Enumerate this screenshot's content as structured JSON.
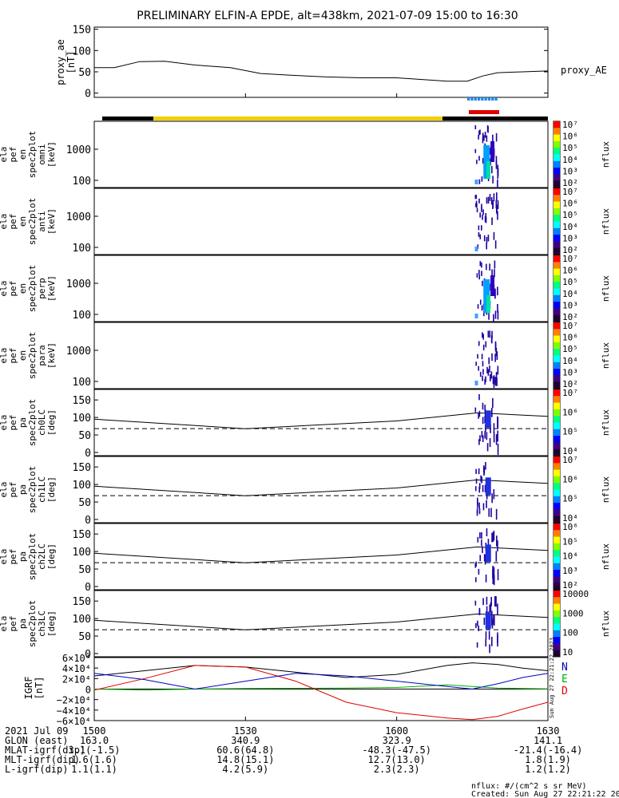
{
  "title": "PRELIMINARY ELFIN-A EPDE, alt=438km, 2021-07-09 15:00 to 16:30",
  "footer": {
    "units": "nflux: #/(cm^2 s sr MeV)",
    "created": "Created: Sun Aug 27 22:21:22 2023",
    "side_stamp": "Sun Aug 27 22:21:22 2023"
  },
  "colors": {
    "ae_bar_blue": "#1e88e5",
    "ae_bar_red": "#e00000",
    "status_black": "#000000",
    "status_yellow": "#f0d000",
    "spectrogram_low": "#2000a0",
    "spectrogram_mid": "#00a0ff",
    "spectrogram_high": "#00e0a0"
  },
  "time_axis": {
    "labels": [
      "1500",
      "1530",
      "1600",
      "1630"
    ],
    "range_minutes": [
      0,
      90
    ]
  },
  "ephemeris": {
    "rows": [
      {
        "label": "2021 Jul 09",
        "values": [
          "1500",
          "1530",
          "1600",
          "1630"
        ]
      },
      {
        "label": "GLON (east)",
        "values": [
          "163.0",
          "340.9",
          "323.9",
          "141.1"
        ]
      },
      {
        "label": "MLAT-igrf(dip)",
        "values": [
          "3.1(-1.5)",
          "60.6(64.8)",
          "-48.3(-47.5)",
          "-21.4(-16.4)"
        ]
      },
      {
        "label": "MLT-igrf(dip)",
        "values": [
          "1.6(1.6)",
          "14.8(15.1)",
          "12.7(13.0)",
          "1.8(1.9)"
        ]
      },
      {
        "label": "L-igrf(dip)",
        "values": [
          "1.1(1.1)",
          "4.2(5.9)",
          "2.3(2.3)",
          "1.2(1.2)"
        ]
      }
    ]
  },
  "colorbars": {
    "decade7": {
      "labels": [
        "10⁷",
        "10⁶",
        "10⁵",
        "10⁴",
        "10³",
        "10²"
      ],
      "ylabel": "nflux"
    },
    "lc7": {
      "labels": [
        "10⁷",
        "10⁶",
        "10⁵",
        "10⁴"
      ],
      "ylabel": "nflux"
    },
    "lc6": {
      "labels": [
        "10⁶",
        "10⁵",
        "10⁴",
        "10³",
        "10²"
      ],
      "ylabel": "nflux"
    },
    "lc4": {
      "labels": [
        "10000",
        "1000",
        "100",
        "10"
      ],
      "ylabel": "nflux"
    }
  },
  "chart_data": [
    {
      "type": "line",
      "panel": "proxy_ae",
      "ylabel": "proxy_ae [nT]",
      "legend": "proxy_AE",
      "ylim": [
        -10,
        155
      ],
      "yticks": [
        0,
        50,
        100,
        150
      ],
      "x": [
        0,
        4,
        9,
        14,
        20,
        27,
        33,
        39,
        46,
        53,
        60,
        65,
        70,
        74,
        77,
        80,
        85,
        90
      ],
      "values": [
        60,
        60,
        74,
        75,
        66,
        60,
        46,
        42,
        38,
        36,
        36,
        32,
        28,
        28,
        40,
        48,
        50,
        52
      ],
      "x_unit": "minutes after 15:00"
    },
    {
      "type": "heatmap",
      "panel": "omni",
      "ylabel": "ela pef en spec2plot omni [keV]",
      "yticks": [
        "1000",
        "100"
      ],
      "active_x_range": [
        75.5,
        80.0
      ]
    },
    {
      "type": "heatmap",
      "panel": "anti",
      "ylabel": "ela pef en spec2plot anti [keV]",
      "yticks": [
        "1000",
        "100"
      ],
      "active_x_range": [
        75.5,
        80.0
      ]
    },
    {
      "type": "heatmap",
      "panel": "perp",
      "ylabel": "ela pef en spec2plot perp [keV]",
      "yticks": [
        "1000",
        "100"
      ],
      "active_x_range": [
        75.5,
        80.0
      ]
    },
    {
      "type": "heatmap",
      "panel": "para",
      "ylabel": "ela pef en spec2plot para [keV]",
      "yticks": [
        "1000",
        "100"
      ],
      "active_x_range": [
        75.5,
        80.0
      ]
    },
    {
      "type": "heatmap",
      "panel": "ch0LC",
      "ylabel": "ela pef pa spec2plot ch0LC [deg]",
      "yticks": [
        150,
        100,
        50,
        0
      ],
      "ylim": [
        0,
        180
      ],
      "lc_solid_x": [
        0,
        30,
        60,
        76,
        90
      ],
      "lc_solid_y": [
        95,
        68,
        90,
        113,
        103
      ],
      "lc_dashed_y": 68
    },
    {
      "type": "heatmap",
      "panel": "ch1LC",
      "ylabel": "ela pef pa spec2plot ch1LC [deg]",
      "yticks": [
        150,
        100,
        50,
        0
      ],
      "ylim": [
        0,
        180
      ],
      "lc_solid_x": [
        0,
        30,
        60,
        76,
        90
      ],
      "lc_solid_y": [
        95,
        68,
        90,
        113,
        103
      ],
      "lc_dashed_y": 68
    },
    {
      "type": "heatmap",
      "panel": "ch2LC",
      "ylabel": "ela pef pa spec2plot ch2LC [deg]",
      "yticks": [
        150,
        100,
        50,
        0
      ],
      "ylim": [
        0,
        180
      ],
      "lc_solid_x": [
        0,
        30,
        60,
        76,
        90
      ],
      "lc_solid_y": [
        95,
        68,
        90,
        113,
        103
      ],
      "lc_dashed_y": 68
    },
    {
      "type": "heatmap",
      "panel": "ch3LC",
      "ylabel": "ela pef pa spec2plot ch3LC [deg]",
      "yticks": [
        150,
        100,
        50,
        0
      ],
      "ylim": [
        0,
        180
      ],
      "lc_solid_x": [
        0,
        30,
        60,
        76,
        90
      ],
      "lc_solid_y": [
        95,
        68,
        90,
        113,
        103
      ],
      "lc_dashed_y": 68
    },
    {
      "type": "line",
      "panel": "IGRF",
      "ylabel": "IGRF [nT]",
      "ylim": [
        -60000,
        60000
      ],
      "ytick_labels": [
        "6×10⁴",
        "4×10⁴",
        "2×10⁴",
        "0",
        "−2×10⁴",
        "−4×10⁴",
        "−6×10⁴"
      ],
      "yticks": [
        60000,
        40000,
        20000,
        0,
        -20000,
        -40000,
        -60000
      ],
      "x": [
        0,
        10,
        20,
        30,
        40,
        50,
        60,
        70,
        75,
        80,
        85,
        90
      ],
      "series": [
        {
          "name": "N",
          "color": "#000000",
          "values": [
            25000,
            35000,
            45000,
            42000,
            32000,
            22000,
            28000,
            45000,
            50000,
            47000,
            40000,
            35000
          ]
        },
        {
          "name": "E",
          "color": "#00b000",
          "values": [
            0,
            -2000,
            0,
            1000,
            1500,
            2000,
            3000,
            8000,
            5000,
            2000,
            1000,
            500
          ]
        },
        {
          "name": "D",
          "color": "#e00000",
          "values": [
            -2000,
            20000,
            45000,
            42000,
            15000,
            -25000,
            -45000,
            -55000,
            -58000,
            -52000,
            -38000,
            -25000
          ]
        },
        {
          "name": "",
          "color": "#0000c0",
          "values": [
            30000,
            18000,
            0,
            15000,
            30000,
            25000,
            15000,
            5000,
            0,
            10000,
            22000,
            30000
          ]
        }
      ]
    }
  ],
  "panels": {
    "proxy_ae": {
      "lines": [
        "proxy_ae",
        "[nT]"
      ],
      "legend": "proxy_AE"
    },
    "omni": {
      "lines": [
        "ela",
        "pef",
        "en",
        "spec2plot",
        "omni",
        "[keV]"
      ]
    },
    "anti": {
      "lines": [
        "ela",
        "pef",
        "en",
        "spec2plot",
        "anti",
        "[keV]"
      ]
    },
    "perp": {
      "lines": [
        "ela",
        "pef",
        "en",
        "spec2plot",
        "perp",
        "[keV]"
      ]
    },
    "para": {
      "lines": [
        "ela",
        "pef",
        "en",
        "spec2plot",
        "para",
        "[keV]"
      ]
    },
    "ch0": {
      "lines": [
        "ela",
        "pef",
        "pa",
        "spec2plot",
        "ch0LC",
        "[deg]"
      ]
    },
    "ch1": {
      "lines": [
        "ela",
        "pef",
        "pa",
        "spec2plot",
        "ch1LC",
        "[deg]"
      ]
    },
    "ch2": {
      "lines": [
        "ela",
        "pef",
        "pa",
        "spec2plot",
        "ch2LC",
        "[deg]"
      ]
    },
    "ch3": {
      "lines": [
        "ela",
        "pef",
        "pa",
        "spec2plot",
        "ch3LC",
        "[deg]"
      ]
    },
    "igrf": {
      "lines": [
        "IGRF",
        "[nT]"
      ],
      "legend": [
        "N",
        "E",
        "D"
      ]
    }
  }
}
